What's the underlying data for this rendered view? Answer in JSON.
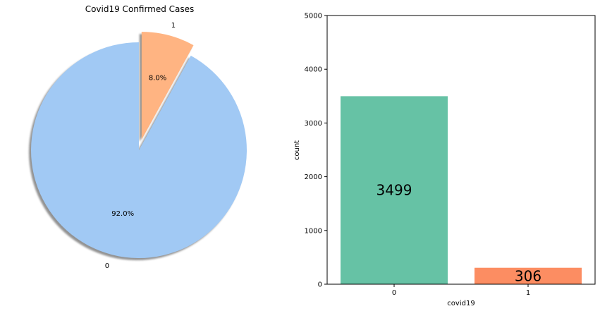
{
  "chart_data": [
    {
      "type": "pie",
      "title": "Covid19 Confirmed Cases",
      "labels": [
        "0",
        "1"
      ],
      "values": [
        92.0,
        8.0
      ],
      "percent_labels": [
        "92.0%",
        "8.0%"
      ],
      "colors": [
        "#a1c9f4",
        "#ffb482"
      ],
      "explode": [
        0,
        0.1
      ],
      "shadow": true,
      "start_angle": 90
    },
    {
      "type": "bar",
      "categories": [
        "0",
        "1"
      ],
      "values": [
        3499,
        306
      ],
      "value_labels": [
        "3499",
        "306"
      ],
      "colors": [
        "#66c2a5",
        "#fc8d62"
      ],
      "xlabel": "covid19",
      "ylabel": "count",
      "ylim": [
        0,
        5000
      ],
      "yticks": [
        "0",
        "1000",
        "2000",
        "3000",
        "4000",
        "5000"
      ],
      "grid": false
    }
  ]
}
